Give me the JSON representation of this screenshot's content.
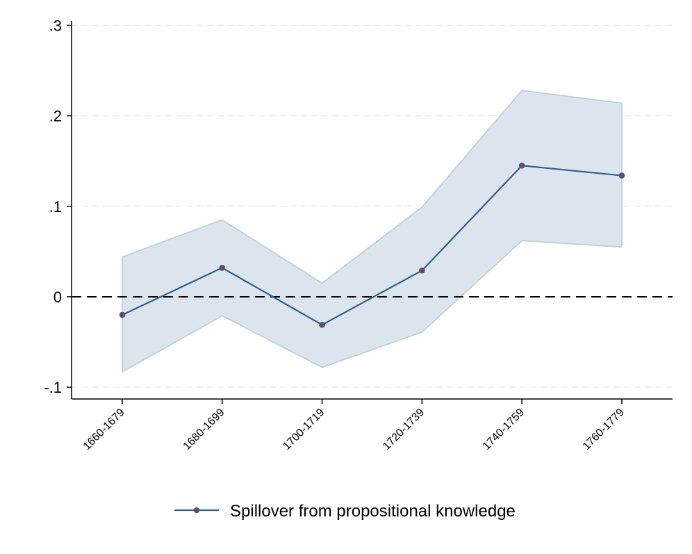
{
  "chart_data": {
    "type": "line",
    "title": "",
    "xlabel": "",
    "ylabel": "",
    "categories": [
      "1660-1679",
      "1680-1699",
      "1700-1719",
      "1720-1739",
      "1740-1759",
      "1760-1779"
    ],
    "series": [
      {
        "name": "Spillover from propositional knowledge",
        "values": [
          -0.02,
          0.032,
          -0.031,
          0.029,
          0.145,
          0.134
        ],
        "ci_lower": [
          -0.083,
          -0.021,
          -0.078,
          -0.039,
          0.062,
          0.055
        ],
        "ci_upper": [
          0.044,
          0.085,
          0.015,
          0.099,
          0.228,
          0.214
        ],
        "color": "#2e5f8a",
        "marker_color": "#8b3a6a",
        "band_color": "#dce5ee",
        "band_edge_color": "#c2d2e0"
      }
    ],
    "ylim": [
      -0.113,
      0.305
    ],
    "yticks": [
      -0.1,
      0,
      0.1,
      0.2,
      0.3
    ],
    "ytick_labels": [
      "-.1",
      "0",
      ".1",
      ".2",
      ".3"
    ],
    "reference_line": {
      "y": 0,
      "style": "dashed"
    },
    "grid": {
      "y": true,
      "style": "dashed",
      "color": "#e6e6e6"
    },
    "legend": {
      "placement": "bottom",
      "entries": [
        "Spillover from propositional knowledge"
      ]
    }
  }
}
